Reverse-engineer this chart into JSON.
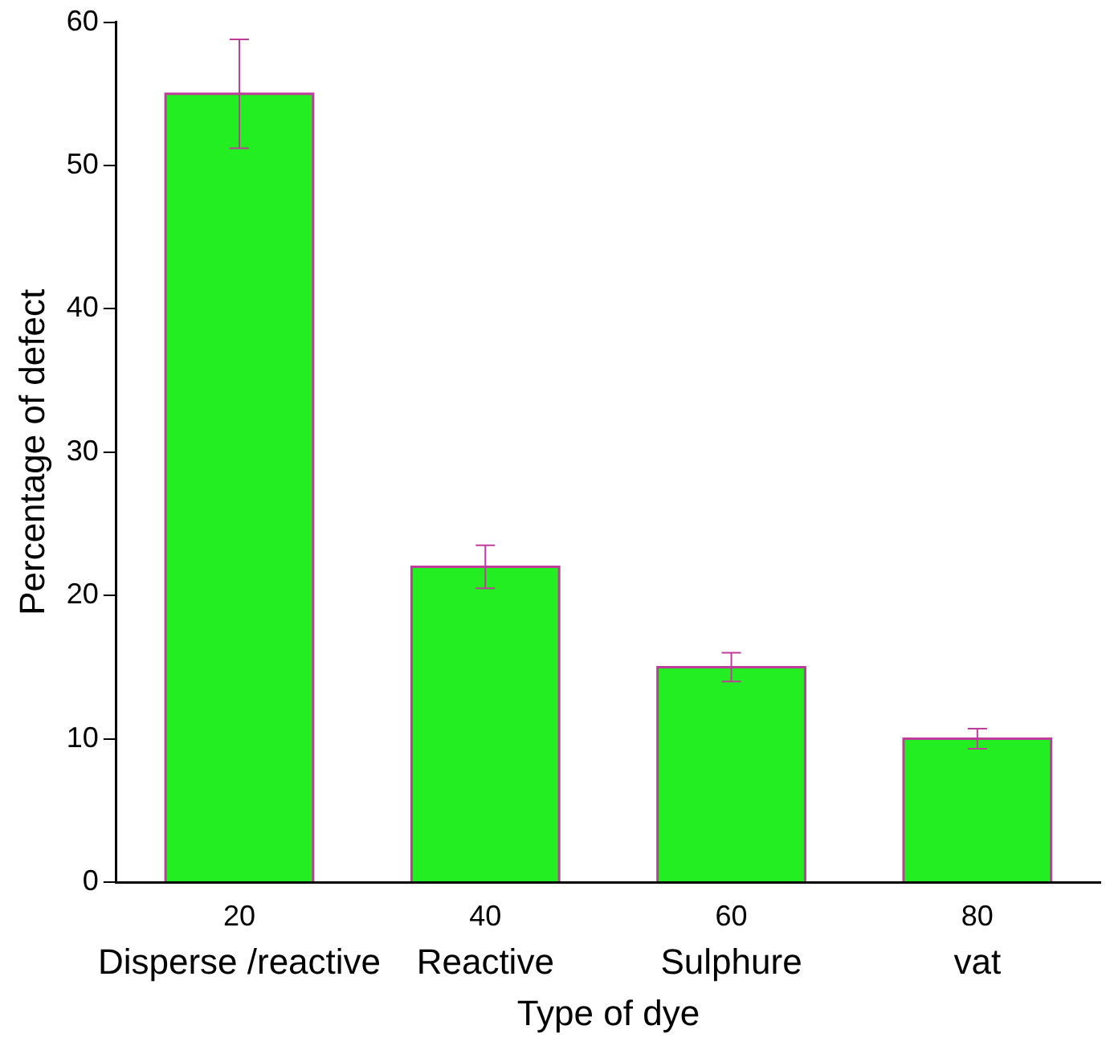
{
  "chart_data": {
    "type": "bar",
    "xlabel": "Type of dye",
    "ylabel": "Percentage of defect",
    "categories": [
      "20",
      "40",
      "60",
      "80"
    ],
    "values": [
      55,
      22,
      15,
      10
    ],
    "errors": [
      3.8,
      1.5,
      1,
      0.7
    ],
    "color": "#22ee22",
    "ylim": [
      0,
      60
    ],
    "yticks": [
      0,
      10,
      20,
      30,
      40,
      50,
      60
    ],
    "annotations": [
      "Disperse /reactive",
      "Reactive",
      "Sulphure",
      "vat"
    ],
    "grid": false,
    "legend": false
  }
}
